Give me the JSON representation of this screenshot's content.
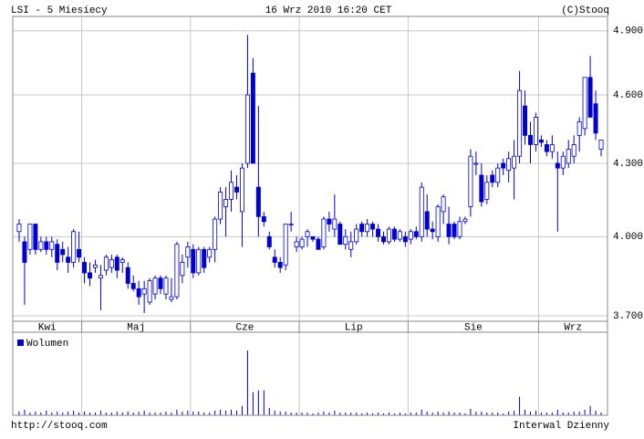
{
  "chart_data": {
    "type": "candlestick",
    "title": "LSI - 5 Miesiecy",
    "subtitle": "16 Wrz 2010 16:20 CET",
    "source": "(C)Stooq",
    "footer_left": "http://stooq.com",
    "footer_right": "Interwal Dzienny",
    "volume_label": "Wolumen",
    "log_scale": true,
    "grid": true,
    "up_color": "#ffffff",
    "down_color": "#0000d0",
    "edge_color": "#0000d0",
    "volume_color": "#0000d0",
    "ylim": [
      3.68,
      4.97
    ],
    "yticks": [
      {
        "value": 3.7,
        "label": "3.700"
      },
      {
        "value": 4.0,
        "label": "4.000"
      },
      {
        "value": 4.3,
        "label": "4.300"
      },
      {
        "value": 4.6,
        "label": "4.600"
      },
      {
        "value": 4.9,
        "label": "4.900"
      }
    ],
    "categories": [
      "Kwi",
      "Maj",
      "Cze",
      "Lip",
      "Sie",
      "Wrz"
    ],
    "candles": [
      [
        [
          4.02,
          4.07,
          3.98,
          4.05,
          4
        ],
        [
          3.98,
          4.0,
          3.74,
          3.9,
          6
        ],
        [
          3.95,
          4.05,
          3.93,
          4.05,
          3
        ],
        [
          4.05,
          4.05,
          3.93,
          3.95,
          4
        ],
        [
          3.95,
          4.0,
          3.94,
          3.98,
          3
        ],
        [
          3.98,
          4.0,
          3.93,
          3.95,
          5
        ],
        [
          3.95,
          4.0,
          3.92,
          3.98,
          3
        ],
        [
          3.97,
          3.99,
          3.87,
          3.9,
          4
        ],
        [
          3.95,
          3.98,
          3.9,
          3.93,
          3
        ],
        [
          3.92,
          3.96,
          3.86,
          3.9,
          4
        ],
        [
          3.9,
          4.03,
          3.88,
          4.02,
          5
        ],
        [
          3.95,
          4.02,
          3.9,
          3.92,
          3
        ]
      ],
      [
        [
          3.9,
          3.92,
          3.82,
          3.86,
          4
        ],
        [
          3.86,
          3.9,
          3.81,
          3.84,
          3
        ],
        [
          3.88,
          3.91,
          3.86,
          3.89,
          3
        ],
        [
          3.84,
          3.89,
          3.72,
          3.85,
          5
        ],
        [
          3.87,
          3.93,
          3.85,
          3.92,
          3
        ],
        [
          3.88,
          3.93,
          3.86,
          3.91,
          3
        ],
        [
          3.92,
          3.93,
          3.84,
          3.87,
          4
        ],
        [
          3.9,
          3.92,
          3.86,
          3.91,
          3
        ],
        [
          3.88,
          3.9,
          3.8,
          3.82,
          4
        ],
        [
          3.82,
          3.85,
          3.79,
          3.8,
          3
        ],
        [
          3.8,
          3.83,
          3.74,
          3.77,
          4
        ],
        [
          3.78,
          3.83,
          3.71,
          3.8,
          5
        ],
        [
          3.75,
          3.84,
          3.74,
          3.83,
          3
        ],
        [
          3.78,
          3.85,
          3.76,
          3.84,
          3
        ],
        [
          3.84,
          3.85,
          3.78,
          3.8,
          3
        ],
        [
          3.78,
          3.85,
          3.76,
          3.84,
          4
        ],
        [
          3.76,
          3.84,
          3.75,
          3.77,
          3
        ],
        [
          3.77,
          3.98,
          3.76,
          3.97,
          6
        ],
        [
          3.85,
          3.93,
          3.82,
          3.9,
          4
        ],
        [
          3.92,
          3.98,
          3.88,
          3.96,
          5
        ]
      ],
      [
        [
          3.95,
          3.97,
          3.84,
          3.86,
          4
        ],
        [
          3.86,
          3.96,
          3.85,
          3.95,
          4
        ],
        [
          3.95,
          3.96,
          3.86,
          3.88,
          3
        ],
        [
          3.92,
          3.96,
          3.9,
          3.95,
          3
        ],
        [
          3.95,
          4.08,
          3.9,
          4.07,
          5
        ],
        [
          4.07,
          4.2,
          4.05,
          4.18,
          6
        ],
        [
          4.12,
          4.2,
          4.0,
          4.15,
          5
        ],
        [
          4.15,
          4.27,
          4.1,
          4.22,
          6
        ],
        [
          4.2,
          4.25,
          4.15,
          4.18,
          5
        ],
        [
          4.1,
          4.3,
          3.96,
          4.28,
          10
        ],
        [
          4.3,
          4.88,
          4.28,
          4.6,
          70
        ],
        [
          4.7,
          4.77,
          4.3,
          4.3,
          25
        ],
        [
          4.2,
          4.55,
          4.0,
          4.08,
          27
        ],
        [
          4.08,
          4.1,
          4.04,
          4.06,
          27
        ],
        [
          4.0,
          4.02,
          3.95,
          3.96,
          8
        ],
        [
          3.92,
          3.95,
          3.88,
          3.9,
          5
        ],
        [
          3.9,
          3.92,
          3.86,
          3.88,
          4
        ],
        [
          3.89,
          4.05,
          3.87,
          4.05,
          4
        ],
        [
          4.05,
          4.1,
          4.02,
          4.05,
          3
        ],
        [
          3.96,
          4.0,
          3.94,
          3.98,
          3
        ]
      ],
      [
        [
          3.96,
          4.0,
          3.95,
          3.99,
          3
        ],
        [
          4.0,
          4.03,
          3.96,
          4.02,
          3
        ],
        [
          4.0,
          4.0,
          3.98,
          3.99,
          2
        ],
        [
          3.99,
          4.0,
          3.95,
          3.95,
          3
        ],
        [
          3.96,
          4.08,
          3.95,
          4.07,
          4
        ],
        [
          4.07,
          4.1,
          4.02,
          4.05,
          3
        ],
        [
          4.03,
          4.17,
          4.0,
          4.07,
          5
        ],
        [
          4.05,
          4.06,
          3.97,
          3.97,
          3
        ],
        [
          3.97,
          4.03,
          3.95,
          4.0,
          3
        ],
        [
          3.95,
          4.02,
          3.92,
          3.98,
          3
        ],
        [
          3.98,
          4.05,
          3.97,
          4.03,
          3
        ],
        [
          4.05,
          4.06,
          4.0,
          4.02,
          2
        ],
        [
          4.02,
          4.07,
          4.0,
          4.05,
          3
        ],
        [
          4.05,
          4.06,
          4.0,
          4.03,
          2
        ],
        [
          4.03,
          4.05,
          3.98,
          4.0,
          3
        ],
        [
          4.0,
          4.02,
          3.97,
          3.98,
          2
        ],
        [
          3.98,
          4.04,
          3.97,
          4.03,
          3
        ],
        [
          4.03,
          4.04,
          3.98,
          3.99,
          2
        ],
        [
          3.99,
          4.03,
          3.98,
          4.02,
          3
        ],
        [
          4.0,
          4.02,
          3.96,
          3.98,
          2
        ]
      ],
      [
        [
          3.99,
          4.03,
          3.97,
          4.02,
          3
        ],
        [
          4.02,
          4.04,
          3.99,
          4.0,
          3
        ],
        [
          4.0,
          4.22,
          3.98,
          4.2,
          6
        ],
        [
          4.1,
          4.17,
          4.0,
          4.03,
          4
        ],
        [
          4.03,
          4.06,
          3.99,
          4.02,
          3
        ],
        [
          4.0,
          4.13,
          3.98,
          4.12,
          4
        ],
        [
          4.1,
          4.17,
          4.05,
          4.16,
          3
        ],
        [
          4.05,
          4.12,
          3.97,
          4.0,
          4
        ],
        [
          4.05,
          4.06,
          3.99,
          4.0,
          3
        ],
        [
          4.0,
          4.08,
          3.99,
          4.06,
          3
        ],
        [
          4.06,
          4.08,
          4.05,
          4.07,
          2
        ],
        [
          4.12,
          4.36,
          4.08,
          4.33,
          7
        ],
        [
          4.3,
          4.35,
          4.25,
          4.3,
          4
        ],
        [
          4.25,
          4.3,
          4.12,
          4.14,
          4
        ],
        [
          4.15,
          4.25,
          4.13,
          4.22,
          3
        ],
        [
          4.25,
          4.27,
          4.2,
          4.22,
          3
        ],
        [
          4.22,
          4.3,
          4.2,
          4.28,
          3
        ],
        [
          4.3,
          4.32,
          4.25,
          4.28,
          2
        ],
        [
          4.27,
          4.35,
          4.22,
          4.32,
          4
        ],
        [
          4.28,
          4.4,
          4.15,
          4.33,
          5
        ],
        [
          4.33,
          4.71,
          4.3,
          4.62,
          20
        ],
        [
          4.55,
          4.62,
          4.38,
          4.42,
          6
        ],
        [
          4.42,
          4.48,
          4.3,
          4.38,
          4
        ],
        [
          4.38,
          4.52,
          4.35,
          4.5,
          5
        ]
      ],
      [
        [
          4.4,
          4.42,
          4.37,
          4.39,
          3
        ],
        [
          4.38,
          4.4,
          4.33,
          4.35,
          3
        ],
        [
          4.35,
          4.42,
          4.32,
          4.38,
          3
        ],
        [
          4.3,
          4.35,
          4.02,
          4.28,
          6
        ],
        [
          4.28,
          4.35,
          4.25,
          4.33,
          3
        ],
        [
          4.3,
          4.4,
          4.28,
          4.36,
          3
        ],
        [
          4.33,
          4.42,
          4.3,
          4.38,
          4
        ],
        [
          4.42,
          4.5,
          4.35,
          4.48,
          4
        ],
        [
          4.45,
          4.68,
          4.42,
          4.68,
          6
        ],
        [
          4.68,
          4.78,
          4.5,
          4.5,
          10
        ],
        [
          4.56,
          4.62,
          4.4,
          4.43,
          5
        ],
        [
          4.36,
          4.4,
          4.33,
          4.4,
          3
        ]
      ]
    ]
  }
}
